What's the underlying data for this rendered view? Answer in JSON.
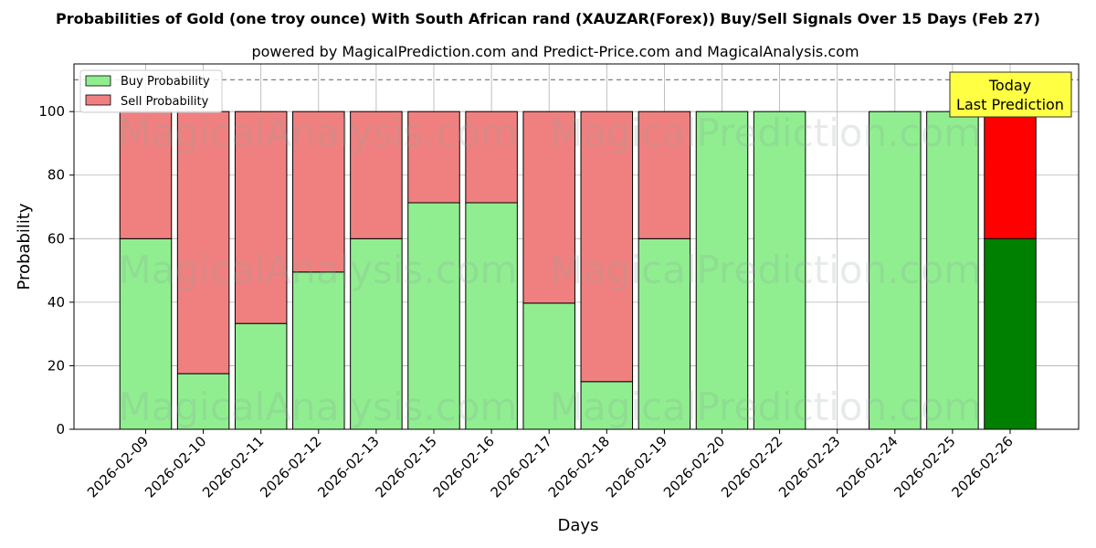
{
  "chart_data": {
    "type": "bar",
    "stacked": true,
    "title": "Probabilities of Gold (one troy ounce) With South African rand (XAUZAR(Forex)) Buy/Sell Signals Over 15 Days (Feb 27)",
    "subtitle": "powered by MagicalPrediction.com and Predict-Price.com and MagicalAnalysis.com",
    "xlabel": "Days",
    "ylabel": "Probability",
    "ylim": [
      0,
      115
    ],
    "yticks": [
      0,
      20,
      40,
      60,
      80,
      100
    ],
    "grid": true,
    "reference_line": 110,
    "legend_position": "top-left",
    "categories": [
      "2026-02-09",
      "2026-02-10",
      "2026-02-11",
      "2026-02-12",
      "2026-02-13",
      "2026-02-15",
      "2026-02-16",
      "2026-02-17",
      "2026-02-18",
      "2026-02-19",
      "2026-02-20",
      "2026-02-22",
      "2026-02-23",
      "2026-02-24",
      "2026-02-25",
      "2026-02-26"
    ],
    "series": [
      {
        "name": "Buy Probability",
        "color": "#90ee90",
        "values": [
          60,
          17.5,
          33.3,
          49.5,
          60,
          71.3,
          71.3,
          39.7,
          15,
          60,
          100,
          100,
          0,
          100,
          100,
          60
        ]
      },
      {
        "name": "Sell Probability",
        "color": "#f08080",
        "values": [
          40,
          82.5,
          66.7,
          50.5,
          40,
          28.7,
          28.7,
          60.3,
          85,
          40,
          0,
          0,
          0,
          0,
          0,
          40
        ]
      }
    ],
    "highlight": {
      "index": 15,
      "buy_color": "#008000",
      "sell_color": "#ff0000"
    },
    "annotation": {
      "lines": [
        "Today",
        "Last Prediction"
      ],
      "background": "#ffff44"
    },
    "watermarks": [
      "MagicalAnalysis.com",
      "MagicalPrediction.com"
    ]
  }
}
